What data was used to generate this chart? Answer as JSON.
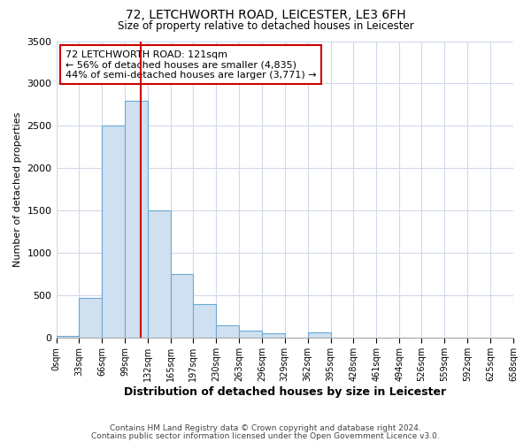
{
  "title": "72, LETCHWORTH ROAD, LEICESTER, LE3 6FH",
  "subtitle": "Size of property relative to detached houses in Leicester",
  "xlabel": "Distribution of detached houses by size in Leicester",
  "ylabel": "Number of detached properties",
  "bar_edges": [
    0,
    33,
    66,
    99,
    132,
    165,
    197,
    230,
    263,
    296,
    329,
    362,
    395,
    428,
    461,
    494,
    526,
    559,
    592,
    625,
    658
  ],
  "bar_heights": [
    20,
    470,
    2500,
    2800,
    1500,
    750,
    390,
    140,
    75,
    50,
    0,
    60,
    0,
    0,
    0,
    0,
    0,
    0,
    0,
    0
  ],
  "bar_color": "#cfe0f0",
  "bar_edge_color": "#6aaad4",
  "vline_x": 121,
  "vline_color": "#cc0000",
  "ylim": [
    0,
    3500
  ],
  "yticks": [
    0,
    500,
    1000,
    1500,
    2000,
    2500,
    3000,
    3500
  ],
  "annotation_line1": "72 LETCHWORTH ROAD: 121sqm",
  "annotation_line2": "← 56% of detached houses are smaller (4,835)",
  "annotation_line3": "44% of semi-detached houses are larger (3,771) →",
  "annotation_box_color": "#ffffff",
  "annotation_box_edge": "#cc0000",
  "tick_labels": [
    "0sqm",
    "33sqm",
    "66sqm",
    "99sqm",
    "132sqm",
    "165sqm",
    "197sqm",
    "230sqm",
    "263sqm",
    "296sqm",
    "329sqm",
    "362sqm",
    "395sqm",
    "428sqm",
    "461sqm",
    "494sqm",
    "526sqm",
    "559sqm",
    "592sqm",
    "625sqm",
    "658sqm"
  ],
  "footer_line1": "Contains HM Land Registry data © Crown copyright and database right 2024.",
  "footer_line2": "Contains public sector information licensed under the Open Government Licence v3.0.",
  "bg_color": "#ffffff",
  "grid_color": "#d0daea"
}
